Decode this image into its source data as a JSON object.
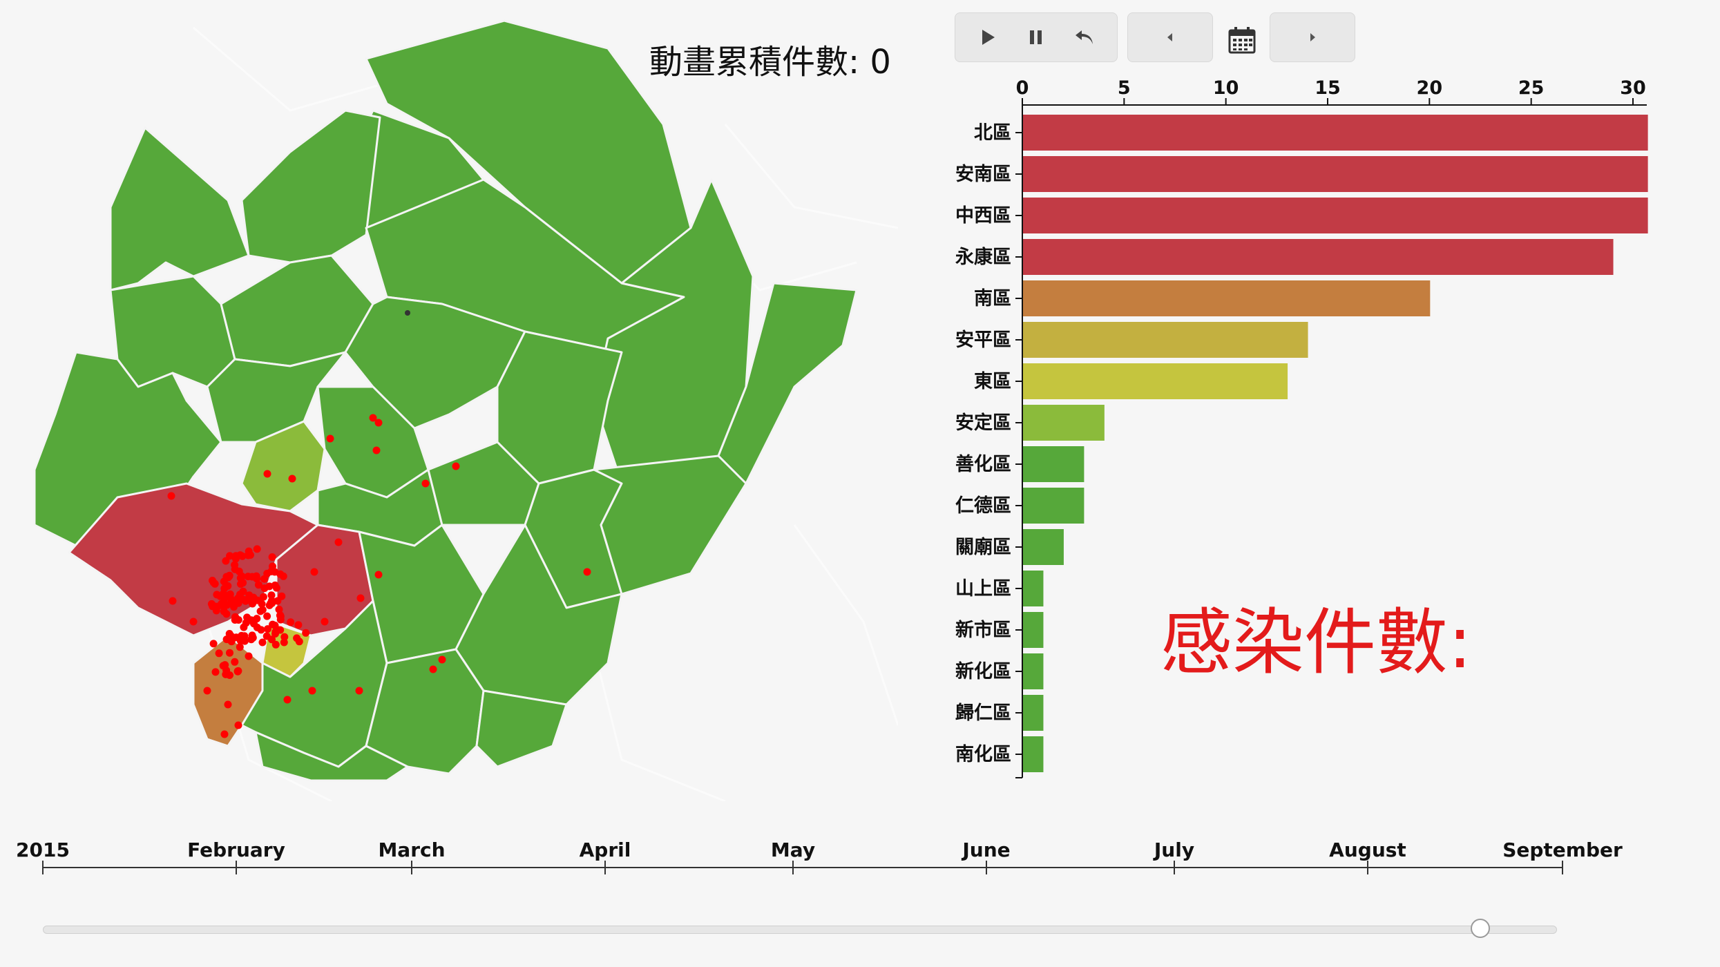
{
  "animation": {
    "label": "動畫累積件數: 0"
  },
  "infection": {
    "label": "感染件數:"
  },
  "controls": {
    "play_icon": "play-icon",
    "pause_icon": "pause-icon",
    "reset_icon": "undo-icon",
    "prev_icon": "chevron-left-icon",
    "calendar_icon": "calendar-icon",
    "next_icon": "chevron-right-icon"
  },
  "colors": {
    "map_green": "#56a83a",
    "red": "#c23b45",
    "orange": "#c47e3f",
    "olive": "#c3b040",
    "yellow": "#c5c53e",
    "light_green": "#8bbb3b",
    "dot": "#ff0000"
  },
  "chart_data": {
    "type": "bar",
    "orientation": "horizontal",
    "categories": [
      "北區",
      "安南區",
      "中西區",
      "永康區",
      "南區",
      "安平區",
      "東區",
      "安定區",
      "善化區",
      "仁德區",
      "關廟區",
      "山上區",
      "新市區",
      "新化區",
      "歸仁區",
      "南化區"
    ],
    "values": [
      31,
      31,
      31,
      29,
      20,
      14,
      13,
      4,
      3,
      3,
      2,
      1,
      1,
      1,
      1,
      1
    ],
    "bar_colors": [
      "#c23b45",
      "#c23b45",
      "#c23b45",
      "#c23b45",
      "#c47e3f",
      "#c3b040",
      "#c5c53e",
      "#8bbb3b",
      "#56a83a",
      "#56a83a",
      "#56a83a",
      "#56a83a",
      "#56a83a",
      "#56a83a",
      "#56a83a",
      "#56a83a"
    ],
    "xlim": [
      0,
      30
    ],
    "xticks": [
      0,
      5,
      10,
      15,
      20,
      25,
      30
    ],
    "xaxis_position": "top",
    "title": "",
    "xlabel": "",
    "ylabel": ""
  },
  "timeline": {
    "labels": [
      "2015",
      "February",
      "March",
      "April",
      "May",
      "June",
      "July",
      "August",
      "September"
    ],
    "slider_value": 0.95
  }
}
